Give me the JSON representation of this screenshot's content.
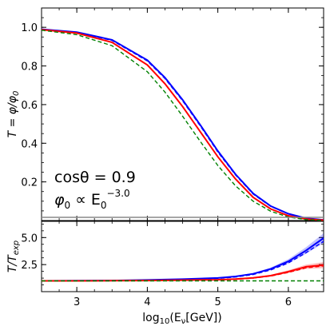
{
  "chart_data": [
    {
      "type": "line",
      "panel": "top",
      "ylabel": "T = φ/φ",
      "ylabel_sub": "0",
      "xlim": [
        2.5,
        6.5
      ],
      "ylim": [
        0.0,
        1.1
      ],
      "yticks": [
        0.2,
        0.4,
        0.6,
        0.8,
        1.0
      ],
      "ytick_labels": [
        "0.2",
        "0.4",
        "0.6",
        "0.8",
        "1.0"
      ],
      "grid": false,
      "annotations": [
        {
          "text_main": "cosθ = 0.9"
        },
        {
          "text_main": "φ",
          "sub": "0",
          "text_mid": " ∝ E",
          "sub2": "0",
          "sup": "−3.0"
        }
      ],
      "series": [
        {
          "color": "#0000ff",
          "style": "solid",
          "x": [
            2.5,
            3.0,
            3.5,
            4.0,
            4.25,
            4.5,
            4.75,
            5.0,
            5.25,
            5.5,
            5.75,
            6.0,
            6.25,
            6.5
          ],
          "y": [
            0.99,
            0.975,
            0.935,
            0.83,
            0.74,
            0.625,
            0.495,
            0.36,
            0.24,
            0.14,
            0.075,
            0.035,
            0.012,
            0.003
          ]
        },
        {
          "color": "#0000ff",
          "style": "dashed",
          "x": [
            2.5,
            3.0,
            3.5,
            4.0,
            4.25,
            4.5,
            4.75,
            5.0,
            5.25,
            5.5,
            5.75,
            6.0,
            6.25,
            6.5
          ],
          "y": [
            0.988,
            0.973,
            0.932,
            0.826,
            0.735,
            0.62,
            0.49,
            0.355,
            0.236,
            0.137,
            0.073,
            0.034,
            0.012,
            0.003
          ]
        },
        {
          "color": "#ff0000",
          "style": "solid",
          "x": [
            2.5,
            3.0,
            3.5,
            4.0,
            4.25,
            4.5,
            4.75,
            5.0,
            5.25,
            5.5,
            5.75,
            6.0,
            6.25,
            6.5
          ],
          "y": [
            0.988,
            0.97,
            0.922,
            0.805,
            0.708,
            0.59,
            0.46,
            0.33,
            0.215,
            0.12,
            0.06,
            0.025,
            0.008,
            0.002
          ]
        },
        {
          "color": "#008000",
          "style": "dashed",
          "x": [
            2.5,
            3.0,
            3.5,
            4.0,
            4.25,
            4.5,
            4.75,
            5.0,
            5.25,
            5.5,
            5.75,
            6.0,
            6.25,
            6.5
          ],
          "y": [
            0.985,
            0.962,
            0.905,
            0.77,
            0.665,
            0.54,
            0.41,
            0.285,
            0.18,
            0.1,
            0.048,
            0.018,
            0.005,
            0.001
          ]
        }
      ]
    },
    {
      "type": "area",
      "panel": "bottom",
      "ylabel": "T/T",
      "ylabel_sub": "exp",
      "xlabel": "log",
      "xlabel_sub": "10",
      "xlabel_rest": "(E",
      "xlabel_sub2": "ν",
      "xlabel_end": "[GeV])",
      "xlim": [
        2.5,
        6.5
      ],
      "ylim": [
        0.0,
        6.5
      ],
      "xticks": [
        3,
        4,
        5,
        6
      ],
      "xtick_labels": [
        "3",
        "4",
        "5",
        "6"
      ],
      "yticks": [
        2.5,
        5.0
      ],
      "ytick_labels": [
        "2.5",
        "5.0"
      ],
      "grid": false,
      "series": [
        {
          "color": "#0000ff",
          "style": "solid",
          "x": [
            2.5,
            3.0,
            3.5,
            4.0,
            4.5,
            5.0,
            5.25,
            5.5,
            5.75,
            6.0,
            6.25,
            6.5
          ],
          "y": [
            1.0,
            1.01,
            1.03,
            1.08,
            1.15,
            1.26,
            1.4,
            1.65,
            2.1,
            2.8,
            3.8,
            4.95
          ],
          "band": [
            0.0,
            0.0,
            0.0,
            0.01,
            0.02,
            0.03,
            0.05,
            0.07,
            0.12,
            0.2,
            0.3,
            0.45
          ]
        },
        {
          "color": "#0000ff",
          "style": "dashed",
          "x": [
            2.5,
            3.0,
            3.5,
            4.0,
            4.5,
            5.0,
            5.25,
            5.5,
            5.75,
            6.0,
            6.25,
            6.5
          ],
          "y": [
            1.0,
            1.01,
            1.02,
            1.06,
            1.12,
            1.22,
            1.35,
            1.58,
            2.0,
            2.65,
            3.6,
            4.65
          ]
        },
        {
          "color": "#ff0000",
          "style": "solid",
          "x": [
            2.5,
            3.0,
            3.5,
            4.0,
            4.5,
            5.0,
            5.25,
            5.5,
            5.75,
            6.0,
            6.25,
            6.5
          ],
          "y": [
            1.0,
            1.0,
            1.01,
            1.03,
            1.06,
            1.1,
            1.16,
            1.28,
            1.48,
            1.85,
            2.3,
            2.45
          ],
          "band": [
            0.0,
            0.0,
            0.0,
            0.0,
            0.01,
            0.02,
            0.03,
            0.05,
            0.08,
            0.12,
            0.2,
            0.28
          ]
        },
        {
          "color": "#ff0000",
          "style": "dashed",
          "x": [
            2.5,
            3.0,
            3.5,
            4.0,
            4.5,
            5.0,
            5.25,
            5.5,
            5.75,
            6.0,
            6.25,
            6.5
          ],
          "y": [
            1.0,
            1.0,
            1.01,
            1.02,
            1.05,
            1.09,
            1.14,
            1.25,
            1.44,
            1.78,
            2.2,
            2.38
          ]
        },
        {
          "color": "#008000",
          "style": "dashed",
          "x": [
            2.5,
            6.5
          ],
          "y": [
            1.0,
            1.0
          ]
        }
      ]
    }
  ]
}
